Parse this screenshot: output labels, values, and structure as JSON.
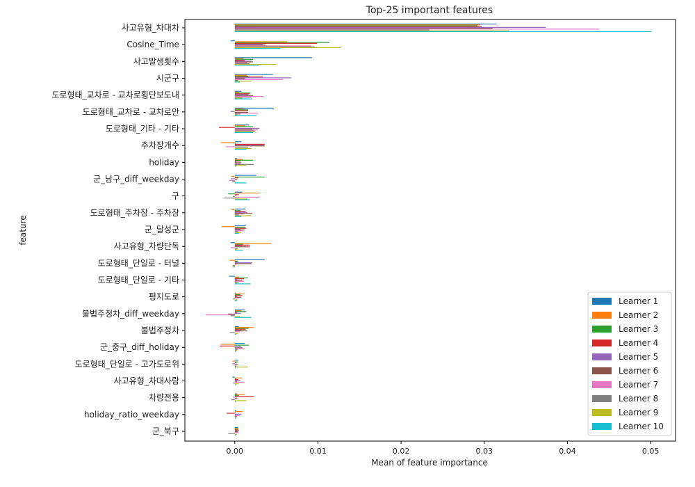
{
  "chart_data": {
    "type": "bar",
    "orientation": "horizontal",
    "title": "Top-25 important features",
    "xlabel": "Mean of feature importance",
    "ylabel": "feature",
    "xlim": [
      -0.006,
      0.053
    ],
    "xticks": [
      0.0,
      0.01,
      0.02,
      0.03,
      0.04,
      0.05
    ],
    "xtick_labels": [
      "0.00",
      "0.01",
      "0.02",
      "0.03",
      "0.04",
      "0.05"
    ],
    "grid": false,
    "legend_position": "lower-right",
    "categories": [
      "사고유형_차대차",
      "Cosine_Time",
      "사고발생횟수",
      "시군구",
      "도로형태_교차로 - 교차로횡단보도내",
      "도로형태_교차로 - 교차로안",
      "도로형태_기타 - 기타",
      "주차장개수",
      "holiday",
      "군_남구_diff_weekday",
      "구",
      "도로형태_주차장 - 주차장",
      "군_달성군",
      "사고유형_차량단독",
      "도로형태_단일로 - 터널",
      "도로형태_단일로 - 기타",
      "평지도로",
      "불법주정차_diff_weekday",
      "불법주정차",
      "군_중구_diff_holiday",
      "도로형태_단일로 - 고가도로위",
      "사고유형_차대사람",
      "차량전용",
      "holiday_ratio_weekday",
      "군_북구"
    ],
    "series": [
      {
        "name": "Learner 1",
        "color": "#1f77b4",
        "values": [
          0.0315,
          -0.0005,
          0.0093,
          0.0046,
          0.0008,
          0.0047,
          0.0017,
          0.0008,
          0.0003,
          0.0026,
          0.0009,
          0.0013,
          0.0013,
          -0.0005,
          0.0036,
          -0.0007,
          0.0001,
          0.0012,
          0.0005,
          0.0012,
          0.0004,
          -0.0003,
          0.0003,
          0.0002,
          0.0004
        ]
      },
      {
        "name": "Learner 2",
        "color": "#ff7f0e",
        "values": [
          0.0295,
          0.0063,
          0.001,
          0.0015,
          0.0005,
          0.001,
          0.0013,
          -0.0017,
          0.001,
          -0.0004,
          0.003,
          -0.0004,
          -0.0016,
          0.0044,
          -0.0006,
          0.0005,
          0.0012,
          0.0008,
          0.0023,
          -0.0017,
          -0.0003,
          0.0009,
          0.0012,
          0.001,
          0.0004
        ]
      },
      {
        "name": "Learner 3",
        "color": "#2ca02c",
        "values": [
          0.0292,
          0.0114,
          0.0022,
          0.0016,
          0.0019,
          0.0016,
          0.0022,
          0.0002,
          0.0022,
          0.0036,
          -0.0008,
          0.0007,
          0.0013,
          0.001,
          0.0004,
          0.0016,
          0.0007,
          0.0014,
          0.0017,
          0.0017,
          0.0004,
          0.0002,
          0.0005,
          0.0001,
          0.0004
        ]
      },
      {
        "name": "Learner 4",
        "color": "#d62728",
        "values": [
          0.0297,
          0.0099,
          0.0012,
          0.0034,
          0.0018,
          0.0016,
          -0.0019,
          0.0036,
          0.0007,
          0.0004,
          0.0005,
          0.0013,
          0.0014,
          0.0018,
          0.0003,
          0.0011,
          0.0009,
          0.0003,
          0.0013,
          -0.0018,
          0.0001,
          0.0004,
          0.0023,
          -0.001,
          0.0005
        ]
      },
      {
        "name": "Learner 5",
        "color": "#9467bd",
        "values": [
          0.0374,
          0.0034,
          0.002,
          0.0068,
          0.0016,
          -0.0005,
          0.003,
          0.0035,
          0.0002,
          -0.0005,
          0.0001,
          0.0015,
          0.0007,
          0.0009,
          0.0021,
          0.0003,
          0.0003,
          0.0007,
          0.0008,
          0.0008,
          -0.0003,
          0.0007,
          -0.0002,
          0.0008,
          0.0003
        ]
      },
      {
        "name": "Learner 6",
        "color": "#8c564b",
        "values": [
          0.031,
          0.0037,
          0.0022,
          0.0012,
          0.0022,
          0.0016,
          0.0021,
          0.0036,
          0.0008,
          0.0003,
          -0.0002,
          0.0021,
          0.0012,
          0.0018,
          0.002,
          0.0009,
          0.0008,
          -0.0008,
          0.0015,
          0.0009,
          0.0004,
          0.0003,
          0.0003,
          0.0002,
          0.0004
        ]
      },
      {
        "name": "Learner 7",
        "color": "#e377c2",
        "values": [
          0.0438,
          0.0092,
          0.0015,
          0.0058,
          0.0034,
          0.0028,
          0.0028,
          -0.0011,
          0.0007,
          -0.0007,
          0.003,
          0.001,
          0.001,
          -0.0005,
          0.0002,
          0.0011,
          0.0005,
          -0.0035,
          0.0006,
          0.0012,
          0.0002,
          0.0012,
          0.0002,
          0.0006,
          0.0005
        ]
      },
      {
        "name": "Learner 8",
        "color": "#7f7f7f",
        "values": [
          0.0234,
          0.0096,
          0.0018,
          0.0004,
          0.002,
          0.0007,
          0.0024,
          0.0016,
          0.0023,
          -0.0003,
          -0.0013,
          0.0005,
          0.0004,
          0.0004,
          -0.0002,
          0.0005,
          -0.0002,
          -0.0005,
          -0.0006,
          0.0003,
          0.0002,
          -0.0002,
          -0.0004,
          0.0003,
          -0.0008
        ]
      },
      {
        "name": "Learner 9",
        "color": "#bcbd22",
        "values": [
          0.033,
          0.0127,
          0.005,
          0.002,
          0.0009,
          0.0003,
          0.0024,
          0.002,
          0.0014,
          0.0002,
          0.0015,
          0.002,
          0.0008,
          0.0003,
          -0.0003,
          0.0003,
          0.0003,
          0.0006,
          0.0004,
          0.0003,
          0.0016,
          0.0005,
          0.0014,
          0.0001,
          0.0003
        ]
      },
      {
        "name": "Learner 10",
        "color": "#17becf",
        "values": [
          0.0501,
          0.0055,
          0.0029,
          0.0006,
          0.0021,
          0.0026,
          0.0022,
          0.0014,
          0.0002,
          0.0014,
          0.0018,
          0.0008,
          0.0005,
          0.001,
          -0.0002,
          0.0019,
          0.0003,
          0.002,
          0.0002,
          0.0001,
          0.0001,
          0.0001,
          0.0001,
          0.0001,
          0.0001
        ]
      }
    ]
  }
}
